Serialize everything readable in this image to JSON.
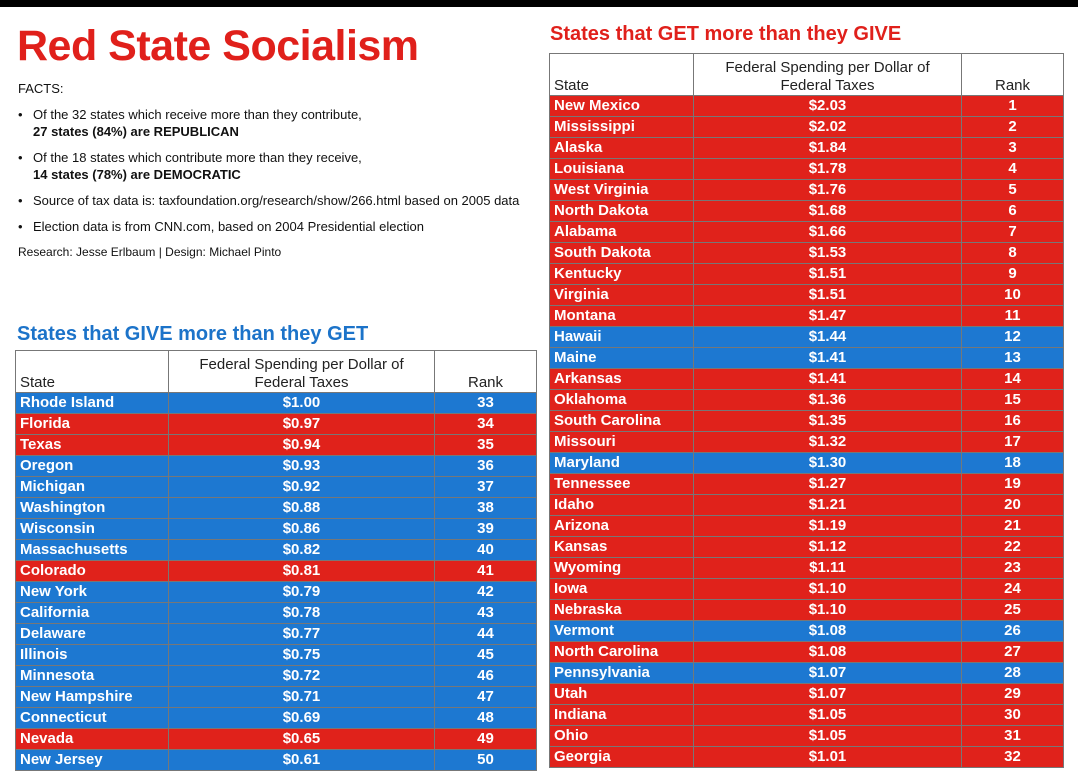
{
  "title": "Red State Socialism",
  "facts": {
    "label": "FACTS:",
    "items": [
      {
        "text": "Of the 32 states which receive more than they contribute,",
        "bold": "27 states (84%) are REPUBLICAN"
      },
      {
        "text": "Of the 18 states which contribute more than they receive,",
        "bold": "14 states (78%) are DEMOCRATIC"
      },
      {
        "text": "Source of tax data is: taxfoundation.org/research/show/266.html based on 2005 data",
        "bold": ""
      },
      {
        "text": "Election data is from CNN.com, based on 2004 Presidential election",
        "bold": ""
      }
    ],
    "credit": "Research: Jesse Erlbaum | Design: Michael Pinto"
  },
  "colors": {
    "republican": "#e0221b",
    "democratic": "#1d78d1",
    "title_red": "#e0201b",
    "title_blue": "#1c73c9"
  },
  "give_section": {
    "title": "States that GIVE more than they GET",
    "headers": {
      "state": "State",
      "spend_line1": "Federal Spending per Dollar of",
      "spend_line2": "Federal Taxes",
      "rank": "Rank"
    },
    "rows": [
      {
        "state": "Rhode Island",
        "spend": "$1.00",
        "rank": "33",
        "party": "D"
      },
      {
        "state": "Florida",
        "spend": "$0.97",
        "rank": "34",
        "party": "R"
      },
      {
        "state": "Texas",
        "spend": "$0.94",
        "rank": "35",
        "party": "R"
      },
      {
        "state": "Oregon",
        "spend": "$0.93",
        "rank": "36",
        "party": "D"
      },
      {
        "state": "Michigan",
        "spend": "$0.92",
        "rank": "37",
        "party": "D"
      },
      {
        "state": "Washington",
        "spend": "$0.88",
        "rank": "38",
        "party": "D"
      },
      {
        "state": "Wisconsin",
        "spend": "$0.86",
        "rank": "39",
        "party": "D"
      },
      {
        "state": "Massachusetts",
        "spend": "$0.82",
        "rank": "40",
        "party": "D"
      },
      {
        "state": "Colorado",
        "spend": "$0.81",
        "rank": "41",
        "party": "R"
      },
      {
        "state": "New York",
        "spend": "$0.79",
        "rank": "42",
        "party": "D"
      },
      {
        "state": "California",
        "spend": "$0.78",
        "rank": "43",
        "party": "D"
      },
      {
        "state": "Delaware",
        "spend": "$0.77",
        "rank": "44",
        "party": "D"
      },
      {
        "state": "Illinois",
        "spend": "$0.75",
        "rank": "45",
        "party": "D"
      },
      {
        "state": "Minnesota",
        "spend": "$0.72",
        "rank": "46",
        "party": "D"
      },
      {
        "state": "New Hampshire",
        "spend": "$0.71",
        "rank": "47",
        "party": "D"
      },
      {
        "state": "Connecticut",
        "spend": "$0.69",
        "rank": "48",
        "party": "D"
      },
      {
        "state": "Nevada",
        "spend": "$0.65",
        "rank": "49",
        "party": "R"
      },
      {
        "state": "New Jersey",
        "spend": "$0.61",
        "rank": "50",
        "party": "D"
      }
    ]
  },
  "get_section": {
    "title": "States that GET more than they GIVE",
    "headers": {
      "state": "State",
      "spend_line1": "Federal Spending per Dollar of",
      "spend_line2": "Federal Taxes",
      "rank": "Rank"
    },
    "rows": [
      {
        "state": "New Mexico",
        "spend": "$2.03",
        "rank": "1",
        "party": "R"
      },
      {
        "state": "Mississippi",
        "spend": "$2.02",
        "rank": "2",
        "party": "R"
      },
      {
        "state": "Alaska",
        "spend": "$1.84",
        "rank": "3",
        "party": "R"
      },
      {
        "state": "Louisiana",
        "spend": "$1.78",
        "rank": "4",
        "party": "R"
      },
      {
        "state": "West Virginia",
        "spend": "$1.76",
        "rank": "5",
        "party": "R"
      },
      {
        "state": "North Dakota",
        "spend": "$1.68",
        "rank": "6",
        "party": "R"
      },
      {
        "state": "Alabama",
        "spend": "$1.66",
        "rank": "7",
        "party": "R"
      },
      {
        "state": "South Dakota",
        "spend": "$1.53",
        "rank": "8",
        "party": "R"
      },
      {
        "state": "Kentucky",
        "spend": "$1.51",
        "rank": "9",
        "party": "R"
      },
      {
        "state": "Virginia",
        "spend": "$1.51",
        "rank": "10",
        "party": "R"
      },
      {
        "state": "Montana",
        "spend": "$1.47",
        "rank": "11",
        "party": "R"
      },
      {
        "state": "Hawaii",
        "spend": "$1.44",
        "rank": "12",
        "party": "D"
      },
      {
        "state": "Maine",
        "spend": "$1.41",
        "rank": "13",
        "party": "D"
      },
      {
        "state": "Arkansas",
        "spend": "$1.41",
        "rank": "14",
        "party": "R"
      },
      {
        "state": "Oklahoma",
        "spend": "$1.36",
        "rank": "15",
        "party": "R"
      },
      {
        "state": "South Carolina",
        "spend": "$1.35",
        "rank": "16",
        "party": "R"
      },
      {
        "state": "Missouri",
        "spend": "$1.32",
        "rank": "17",
        "party": "R"
      },
      {
        "state": "Maryland",
        "spend": "$1.30",
        "rank": "18",
        "party": "D"
      },
      {
        "state": "Tennessee",
        "spend": "$1.27",
        "rank": "19",
        "party": "R"
      },
      {
        "state": "Idaho",
        "spend": "$1.21",
        "rank": "20",
        "party": "R"
      },
      {
        "state": "Arizona",
        "spend": "$1.19",
        "rank": "21",
        "party": "R"
      },
      {
        "state": "Kansas",
        "spend": "$1.12",
        "rank": "22",
        "party": "R"
      },
      {
        "state": "Wyoming",
        "spend": "$1.11",
        "rank": "23",
        "party": "R"
      },
      {
        "state": "Iowa",
        "spend": "$1.10",
        "rank": "24",
        "party": "R"
      },
      {
        "state": "Nebraska",
        "spend": "$1.10",
        "rank": "25",
        "party": "R"
      },
      {
        "state": "Vermont",
        "spend": "$1.08",
        "rank": "26",
        "party": "D"
      },
      {
        "state": "North Carolina",
        "spend": "$1.08",
        "rank": "27",
        "party": "R"
      },
      {
        "state": "Pennsylvania",
        "spend": "$1.07",
        "rank": "28",
        "party": "D"
      },
      {
        "state": "Utah",
        "spend": "$1.07",
        "rank": "29",
        "party": "R"
      },
      {
        "state": "Indiana",
        "spend": "$1.05",
        "rank": "30",
        "party": "R"
      },
      {
        "state": "Ohio",
        "spend": "$1.05",
        "rank": "31",
        "party": "R"
      },
      {
        "state": "Georgia",
        "spend": "$1.01",
        "rank": "32",
        "party": "R"
      }
    ]
  }
}
